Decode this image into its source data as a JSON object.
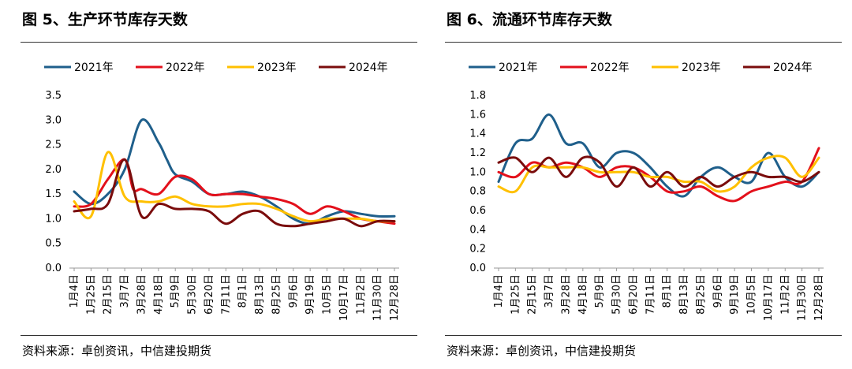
{
  "source_note": "资料来源：卓创资讯，中信建投期货",
  "series_colors": [
    "#1f5f8b",
    "#e3101b",
    "#ffc000",
    "#7a0c0c"
  ],
  "chart_data": [
    {
      "type": "line",
      "title": "图 5、生产环节库存天数",
      "ylim": [
        0,
        3.5
      ],
      "yticks": [
        "0.0",
        "0.5",
        "1.0",
        "1.5",
        "2.0",
        "2.5",
        "3.0",
        "3.5"
      ],
      "legend_position": "top",
      "grid": false,
      "x_tick_labels": [
        "1月4日",
        "1月25日",
        "2月15日",
        "3月7日",
        "3月28日",
        "4月18日",
        "5月9日",
        "5月30日",
        "6月20日",
        "7月11日",
        "8月1日",
        "8月13日",
        "8月25日",
        "9月6日",
        "9月19日",
        "10月5日",
        "10月17日",
        "11月2日",
        "11月30日",
        "12月28日"
      ],
      "series": [
        {
          "name": "2021年",
          "x": [
            0,
            1,
            2,
            3,
            4,
            5,
            5.5,
            6,
            7,
            8,
            9,
            10,
            11,
            12,
            13,
            14,
            15,
            16,
            17,
            18,
            19
          ],
          "values": [
            1.55,
            1.3,
            1.5,
            2.0,
            3.0,
            2.55,
            2.2,
            1.9,
            1.75,
            1.5,
            1.5,
            1.55,
            1.45,
            1.25,
            1.0,
            0.9,
            1.05,
            1.15,
            1.1,
            1.05,
            1.05
          ]
        },
        {
          "name": "2022年",
          "x": [
            0,
            1,
            2,
            3,
            3.5,
            4,
            5,
            6,
            7,
            8,
            9,
            10,
            11,
            12,
            13,
            14,
            15,
            16,
            17,
            18,
            19
          ],
          "values": [
            1.25,
            1.3,
            1.8,
            2.2,
            1.6,
            1.6,
            1.5,
            1.85,
            1.8,
            1.5,
            1.5,
            1.5,
            1.45,
            1.4,
            1.3,
            1.1,
            1.25,
            1.15,
            1.0,
            0.95,
            0.9
          ]
        },
        {
          "name": "2023年",
          "x": [
            0,
            1,
            2,
            3,
            4,
            5,
            6,
            7,
            8,
            9,
            10,
            11,
            12,
            13,
            14,
            15,
            16,
            17,
            18,
            19
          ],
          "values": [
            1.35,
            1.05,
            2.35,
            1.45,
            1.35,
            1.35,
            1.45,
            1.3,
            1.25,
            1.25,
            1.3,
            1.3,
            1.2,
            1.05,
            0.95,
            1.0,
            1.0,
            1.0,
            0.95,
            0.95
          ]
        },
        {
          "name": "2024年",
          "x": [
            0,
            1,
            2,
            3,
            4,
            5,
            6,
            7,
            8,
            9,
            10,
            11,
            12,
            13,
            14,
            15,
            16,
            17,
            18,
            19
          ],
          "values": [
            1.15,
            1.2,
            1.3,
            2.2,
            1.05,
            1.3,
            1.2,
            1.2,
            1.15,
            0.9,
            1.1,
            1.15,
            0.9,
            0.85,
            0.9,
            0.95,
            1.0,
            0.85,
            0.95,
            0.95
          ]
        }
      ]
    },
    {
      "type": "line",
      "title": "图 6、流通环节库存天数",
      "ylim": [
        0,
        1.8
      ],
      "yticks": [
        "0.0",
        "0.2",
        "0.4",
        "0.6",
        "0.8",
        "1.0",
        "1.2",
        "1.4",
        "1.6",
        "1.8"
      ],
      "legend_position": "top",
      "grid": false,
      "x_tick_labels": [
        "1月4日",
        "1月25日",
        "2月15日",
        "3月7日",
        "3月28日",
        "4月18日",
        "5月9日",
        "5月30日",
        "6月20日",
        "7月11日",
        "8月1日",
        "8月13日",
        "8月25日",
        "9月6日",
        "9月19日",
        "10月5日",
        "10月17日",
        "11月2日",
        "11月30日",
        "12月28日"
      ],
      "series": [
        {
          "name": "2021年",
          "x": [
            0,
            1,
            2,
            3,
            4,
            5,
            6,
            7,
            8,
            9,
            10,
            11,
            12,
            13,
            14,
            15,
            16,
            17,
            18,
            19
          ],
          "values": [
            0.9,
            1.3,
            1.35,
            1.6,
            1.3,
            1.3,
            1.05,
            1.2,
            1.2,
            1.05,
            0.85,
            0.75,
            0.95,
            1.05,
            0.95,
            0.9,
            1.2,
            0.95,
            0.85,
            1.0
          ]
        },
        {
          "name": "2022年",
          "x": [
            0,
            1,
            2,
            3,
            4,
            5,
            6,
            7,
            8,
            9,
            10,
            11,
            12,
            13,
            14,
            15,
            16,
            17,
            18,
            19
          ],
          "values": [
            1.0,
            0.95,
            1.1,
            1.05,
            1.1,
            1.05,
            0.95,
            1.05,
            1.05,
            0.95,
            0.8,
            0.8,
            0.85,
            0.75,
            0.7,
            0.8,
            0.85,
            0.9,
            0.9,
            1.25
          ]
        },
        {
          "name": "2023年",
          "x": [
            0,
            1,
            2,
            3,
            4,
            5,
            6,
            7,
            8,
            9,
            10,
            11,
            12,
            13,
            14,
            15,
            16,
            17,
            18,
            19
          ],
          "values": [
            0.85,
            0.8,
            1.05,
            1.05,
            1.05,
            1.05,
            1.0,
            1.0,
            1.0,
            0.95,
            0.95,
            0.9,
            0.9,
            0.8,
            0.85,
            1.05,
            1.15,
            1.15,
            0.95,
            1.15
          ]
        },
        {
          "name": "2024年",
          "x": [
            0,
            1,
            2,
            3,
            4,
            5,
            6,
            7,
            8,
            9,
            10,
            11,
            12,
            13,
            14,
            15,
            16,
            17,
            18,
            19
          ],
          "values": [
            1.1,
            1.15,
            1.0,
            1.15,
            0.95,
            1.15,
            1.1,
            0.85,
            1.05,
            0.85,
            1.0,
            0.85,
            0.95,
            0.85,
            0.95,
            1.0,
            0.95,
            0.95,
            0.9,
            1.0
          ]
        }
      ]
    }
  ]
}
